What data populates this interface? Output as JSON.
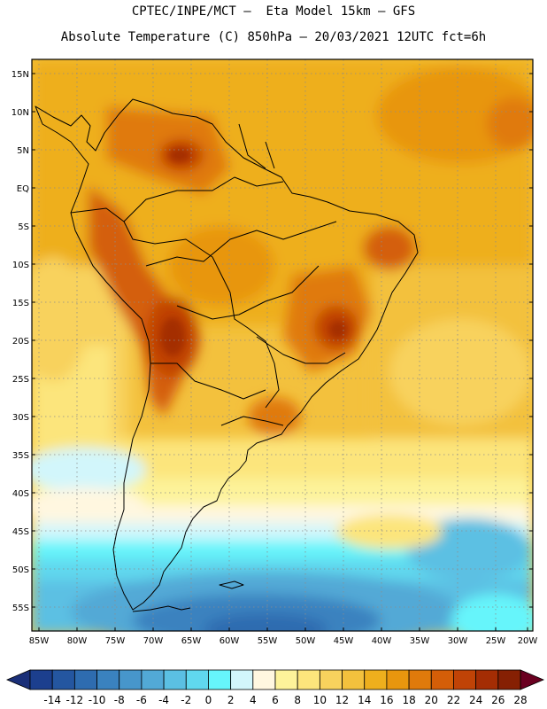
{
  "header": {
    "line1": "CPTEC/INPE/MCT —  Eta Model 15km — GFS",
    "line2": "Absolute Temperature (C) 850hPa — 20/03/2021 12UTC fct=6h"
  },
  "map": {
    "lat_labels": [
      "15N",
      "10N",
      "5N",
      "EQ",
      "5S",
      "10S",
      "15S",
      "20S",
      "25S",
      "30S",
      "35S",
      "40S",
      "45S",
      "50S",
      "55S"
    ],
    "lon_labels": [
      "85W",
      "80W",
      "75W",
      "70W",
      "65W",
      "60W",
      "55W",
      "50W",
      "45W",
      "40W",
      "35W",
      "30W",
      "25W",
      "20W"
    ]
  },
  "colorbar": {
    "labels": [
      "-14",
      "-12",
      "-10",
      "-8",
      "-6",
      "-4",
      "-2",
      "0",
      "2",
      "4",
      "6",
      "8",
      "10",
      "12",
      "14",
      "16",
      "18",
      "20",
      "22",
      "24",
      "26",
      "28"
    ],
    "colors": [
      "#1c3f8e",
      "#2456a0",
      "#2e6cb0",
      "#3a82bf",
      "#4796cb",
      "#52a9d6",
      "#5bc0e3",
      "#60d8ee",
      "#66f5fb",
      "#d2f6fb",
      "#fff7e0",
      "#fdf39a",
      "#fce57c",
      "#f8d25d",
      "#f3c13d",
      "#eeaf1d",
      "#e8960e",
      "#e07a0b",
      "#d45e08",
      "#c04306",
      "#a42d04",
      "#862003"
    ],
    "left_arrow_color": "#1a2f78",
    "right_arrow_color": "#6a0020"
  }
}
